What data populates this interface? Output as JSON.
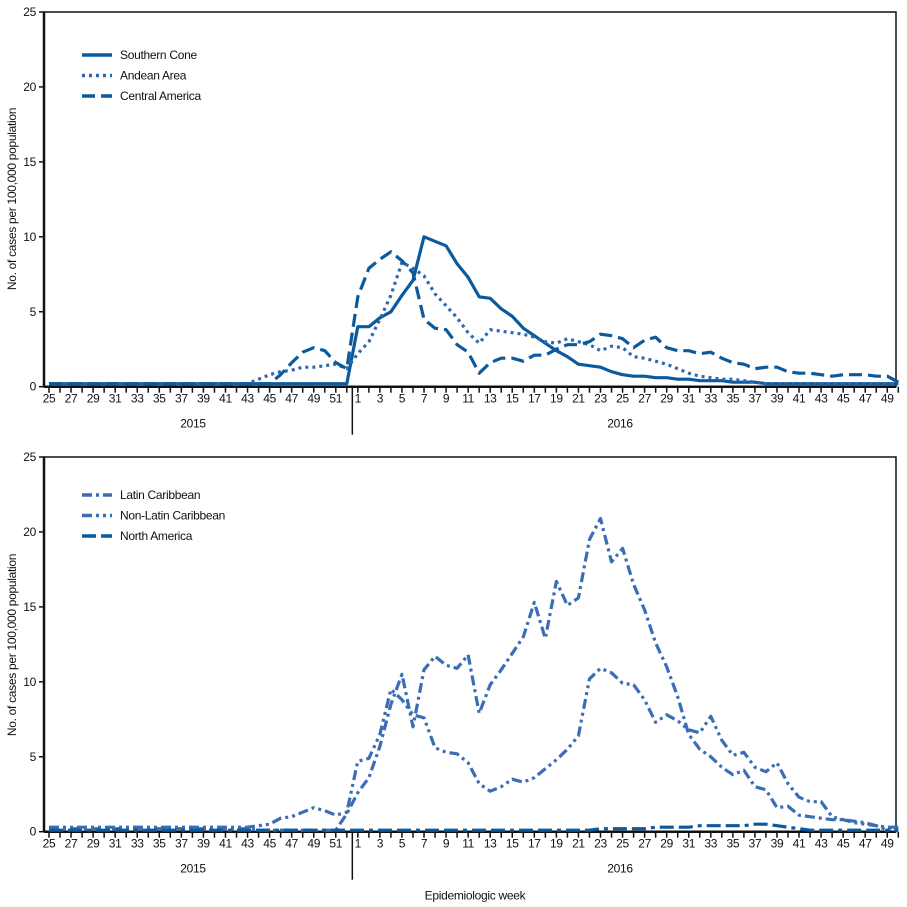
{
  "chart_data": [
    {
      "type": "line",
      "ylabel": "No. of cases per 100,000 population",
      "xlabel": "",
      "ylim": [
        0,
        25
      ],
      "yticks": [
        0,
        5,
        10,
        15,
        20,
        25
      ],
      "years": [
        {
          "label": "2015",
          "weeks": [
            25,
            26,
            27,
            28,
            29,
            30,
            31,
            32,
            33,
            34,
            35,
            36,
            37,
            38,
            39,
            40,
            41,
            42,
            43,
            44,
            45,
            46,
            47,
            48,
            49,
            50,
            51,
            52
          ]
        },
        {
          "label": "2016",
          "weeks": [
            1,
            2,
            3,
            4,
            5,
            6,
            7,
            8,
            9,
            10,
            11,
            12,
            13,
            14,
            15,
            16,
            17,
            18,
            19,
            20,
            21,
            22,
            23,
            24,
            25,
            26,
            27,
            28,
            29,
            30,
            31,
            32,
            33,
            34,
            35,
            36,
            37,
            38,
            39,
            40,
            41,
            42,
            43,
            44,
            45,
            46,
            47,
            48,
            49,
            50
          ]
        }
      ],
      "legend_position": "top-left",
      "grid": false,
      "series": [
        {
          "name": "Southern Cone",
          "style": "solid",
          "color": "#0b5a9e",
          "values": [
            0.2,
            0.2,
            0.2,
            0.2,
            0.2,
            0.2,
            0.2,
            0.2,
            0.2,
            0.2,
            0.2,
            0.2,
            0.2,
            0.2,
            0.2,
            0.2,
            0.2,
            0.2,
            0.2,
            0.2,
            0.2,
            0.2,
            0.2,
            0.2,
            0.2,
            0.2,
            0.2,
            0.2,
            4.0,
            4.0,
            4.6,
            5.0,
            6.1,
            7.1,
            10.0,
            9.7,
            9.4,
            8.2,
            7.3,
            6.0,
            5.9,
            5.2,
            4.7,
            3.9,
            3.4,
            2.9,
            2.4,
            2.0,
            1.5,
            1.4,
            1.3,
            1.0,
            0.8,
            0.7,
            0.7,
            0.6,
            0.6,
            0.5,
            0.5,
            0.4,
            0.4,
            0.4,
            0.3,
            0.3,
            0.3,
            0.2,
            0.2,
            0.2,
            0.2,
            0.2,
            0.2,
            0.2,
            0.2,
            0.2,
            0.2,
            0.2,
            0.2,
            0.2
          ]
        },
        {
          "name": "Andean Area",
          "style": "dotted",
          "color": "#2f68b0",
          "values": [
            0.2,
            0.2,
            0.2,
            0.2,
            0.2,
            0.2,
            0.2,
            0.2,
            0.2,
            0.2,
            0.2,
            0.2,
            0.2,
            0.2,
            0.2,
            0.2,
            0.2,
            0.2,
            0.2,
            0.5,
            0.8,
            1.0,
            1.1,
            1.3,
            1.3,
            1.4,
            1.5,
            1.2,
            2.2,
            3.0,
            4.5,
            6.1,
            8.3,
            7.9,
            7.4,
            6.2,
            5.4,
            4.6,
            3.6,
            2.9,
            3.8,
            3.7,
            3.6,
            3.5,
            3.3,
            3.0,
            2.9,
            3.2,
            3.0,
            2.8,
            2.4,
            2.7,
            2.6,
            2.0,
            1.9,
            1.7,
            1.5,
            1.2,
            0.9,
            0.7,
            0.6,
            0.5,
            0.5,
            0.4,
            0.3,
            0.2,
            0.2,
            0.2,
            0.2,
            0.2,
            0.2,
            0.2,
            0.2,
            0.2,
            0.2,
            0.2,
            0.2,
            0.2
          ]
        },
        {
          "name": "Central America",
          "style": "dashed",
          "color": "#0b5a9e",
          "values": [
            0.2,
            0.2,
            0.2,
            0.2,
            0.2,
            0.2,
            0.2,
            0.2,
            0.2,
            0.2,
            0.2,
            0.2,
            0.2,
            0.2,
            0.2,
            0.2,
            0.2,
            0.2,
            0.2,
            0.2,
            0.2,
            0.8,
            1.6,
            2.3,
            2.6,
            2.4,
            1.6,
            1.2,
            6.0,
            7.9,
            8.5,
            9.0,
            8.4,
            7.6,
            4.5,
            3.9,
            3.8,
            2.8,
            2.3,
            0.9,
            1.6,
            1.9,
            1.9,
            1.7,
            2.1,
            2.1,
            2.5,
            2.8,
            2.8,
            3.0,
            3.5,
            3.4,
            3.2,
            2.6,
            3.1,
            3.3,
            2.6,
            2.4,
            2.4,
            2.2,
            2.3,
            1.9,
            1.6,
            1.5,
            1.2,
            1.3,
            1.3,
            1.0,
            0.9,
            0.9,
            0.8,
            0.7,
            0.8,
            0.8,
            0.8,
            0.7,
            0.7,
            0.3
          ]
        }
      ]
    },
    {
      "type": "line",
      "ylabel": "No. of cases per 100,000 population",
      "xlabel": "Epidemiologic week",
      "ylim": [
        0,
        25
      ],
      "yticks": [
        0,
        5,
        10,
        15,
        20,
        25
      ],
      "years": [
        {
          "label": "2015",
          "weeks": [
            25,
            26,
            27,
            28,
            29,
            30,
            31,
            32,
            33,
            34,
            35,
            36,
            37,
            38,
            39,
            40,
            41,
            42,
            43,
            44,
            45,
            46,
            47,
            48,
            49,
            50,
            51,
            52
          ]
        },
        {
          "label": "2016",
          "weeks": [
            1,
            2,
            3,
            4,
            5,
            6,
            7,
            8,
            9,
            10,
            11,
            12,
            13,
            14,
            15,
            16,
            17,
            18,
            19,
            20,
            21,
            22,
            23,
            24,
            25,
            26,
            27,
            28,
            29,
            30,
            31,
            32,
            33,
            34,
            35,
            36,
            37,
            38,
            39,
            40,
            41,
            42,
            43,
            44,
            45,
            46,
            47,
            48,
            49,
            50
          ]
        }
      ],
      "legend_position": "top-left",
      "grid": false,
      "series": [
        {
          "name": "Latin Caribbean",
          "style": "dash-dot",
          "color": "#3a6db5",
          "values": [
            0.2,
            0.2,
            0.2,
            0.2,
            0.2,
            0.2,
            0.2,
            0.2,
            0.2,
            0.2,
            0.2,
            0.2,
            0.2,
            0.2,
            0.2,
            0.2,
            0.2,
            0.2,
            0.2,
            0.1,
            0.1,
            0.1,
            0.1,
            0.1,
            0.1,
            0.1,
            0.1,
            1.2,
            2.6,
            3.6,
            5.7,
            8.5,
            10.5,
            7.0,
            10.8,
            11.7,
            11.1,
            10.9,
            11.8,
            7.9,
            9.8,
            10.8,
            11.9,
            13.0,
            15.3,
            12.9,
            16.7,
            15.1,
            15.6,
            19.5,
            20.9,
            18.0,
            18.9,
            16.5,
            14.8,
            12.6,
            11.0,
            9.0,
            6.5,
            5.5,
            5.0,
            4.3,
            3.8,
            4.1,
            3.0,
            2.8,
            1.6,
            1.7,
            1.1,
            1.0,
            0.9,
            0.8,
            0.8,
            0.7,
            0.6,
            0.4,
            0.3,
            0.3
          ]
        },
        {
          "name": "Non-Latin Caribbean",
          "style": "dash-dot-dot",
          "color": "#3a6db5",
          "values": [
            0.3,
            0.3,
            0.3,
            0.3,
            0.3,
            0.3,
            0.3,
            0.3,
            0.3,
            0.3,
            0.3,
            0.3,
            0.3,
            0.3,
            0.3,
            0.3,
            0.3,
            0.3,
            0.3,
            0.4,
            0.5,
            0.9,
            1.0,
            1.3,
            1.6,
            1.4,
            1.1,
            1.3,
            4.7,
            4.9,
            6.5,
            9.5,
            8.8,
            7.8,
            7.6,
            5.6,
            5.3,
            5.2,
            4.6,
            3.2,
            2.7,
            3.0,
            3.5,
            3.3,
            3.6,
            4.2,
            4.8,
            5.5,
            6.4,
            10.2,
            10.9,
            10.6,
            9.9,
            9.8,
            8.8,
            7.3,
            7.8,
            7.4,
            6.8,
            6.6,
            7.7,
            6.1,
            5.1,
            5.3,
            4.3,
            4.0,
            4.6,
            3.2,
            2.3,
            2.0,
            2.0,
            1.0,
            0.8,
            0.6,
            0.5,
            0.4,
            0.1,
            0.3
          ]
        },
        {
          "name": "North America",
          "style": "long-dash-short-dash",
          "color": "#0b5a9e",
          "values": [
            0.1,
            0.1,
            0.1,
            0.1,
            0.1,
            0.1,
            0.1,
            0.1,
            0.1,
            0.1,
            0.1,
            0.1,
            0.1,
            0.1,
            0.1,
            0.1,
            0.1,
            0.1,
            0.1,
            0.1,
            0.1,
            0.1,
            0.1,
            0.1,
            0.1,
            0.1,
            0.1,
            0.1,
            0.1,
            0.1,
            0.1,
            0.1,
            0.1,
            0.1,
            0.1,
            0.1,
            0.1,
            0.1,
            0.1,
            0.1,
            0.1,
            0.1,
            0.1,
            0.1,
            0.1,
            0.1,
            0.1,
            0.1,
            0.1,
            0.1,
            0.2,
            0.2,
            0.2,
            0.2,
            0.2,
            0.3,
            0.3,
            0.3,
            0.3,
            0.4,
            0.4,
            0.4,
            0.4,
            0.4,
            0.5,
            0.5,
            0.4,
            0.3,
            0.2,
            0.1,
            0.1,
            0.1,
            0.1,
            0.1,
            0.1,
            0.1,
            0.1,
            0.1
          ]
        }
      ]
    }
  ]
}
